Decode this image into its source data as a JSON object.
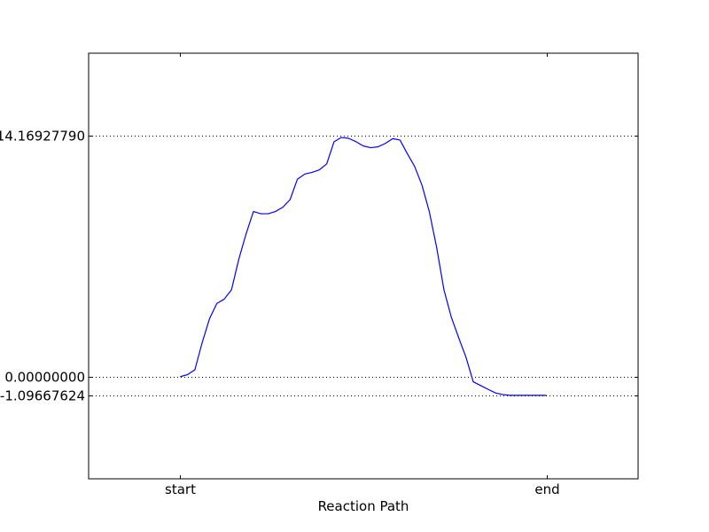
{
  "chart_data": {
    "type": "line",
    "title": "",
    "xlabel": "Reaction Path",
    "ylabel": "",
    "xlim": [
      -0.25,
      1.25
    ],
    "ylim": [
      -6.0,
      19.0
    ],
    "grid": "horizontal dotted at y ticks",
    "xticks": [
      {
        "value": 0,
        "label": "start"
      },
      {
        "value": 1,
        "label": "end"
      }
    ],
    "yticks": [
      {
        "value": 14.1692779,
        "label": "14.16927790"
      },
      {
        "value": 0.0,
        "label": "0.00000000"
      },
      {
        "value": -1.09667624,
        "label": "-1.09667624"
      }
    ],
    "series": [
      {
        "color": "#0000ff",
        "x": [
          0.0,
          0.02,
          0.04,
          0.06,
          0.08,
          0.1,
          0.12,
          0.14,
          0.16,
          0.18,
          0.2,
          0.22,
          0.24,
          0.26,
          0.28,
          0.3,
          0.32,
          0.34,
          0.36,
          0.38,
          0.4,
          0.42,
          0.44,
          0.46,
          0.48,
          0.5,
          0.52,
          0.54,
          0.56,
          0.58,
          0.6,
          0.62,
          0.64,
          0.66,
          0.68,
          0.7,
          0.72,
          0.74,
          0.76,
          0.78,
          0.8,
          0.82,
          0.84,
          0.86,
          0.88,
          0.9,
          0.92,
          0.94,
          0.96,
          0.98,
          1.0
        ],
        "y": [
          0.0,
          0.12,
          0.4,
          2.0,
          3.4,
          4.3,
          4.55,
          5.1,
          6.9,
          8.4,
          9.7,
          9.57,
          9.57,
          9.7,
          9.95,
          10.4,
          11.6,
          11.9,
          12.0,
          12.15,
          12.5,
          13.8,
          14.05,
          14.0,
          13.8,
          13.55,
          13.45,
          13.5,
          13.7,
          13.98,
          13.9,
          13.1,
          12.35,
          11.25,
          9.7,
          7.6,
          5.1,
          3.5,
          2.3,
          1.15,
          -0.3,
          -0.52,
          -0.74,
          -0.95,
          -1.05,
          -1.09667624,
          -1.09667624,
          -1.09667624,
          -1.09667624,
          -1.09667624,
          -1.09667624
        ]
      }
    ]
  }
}
